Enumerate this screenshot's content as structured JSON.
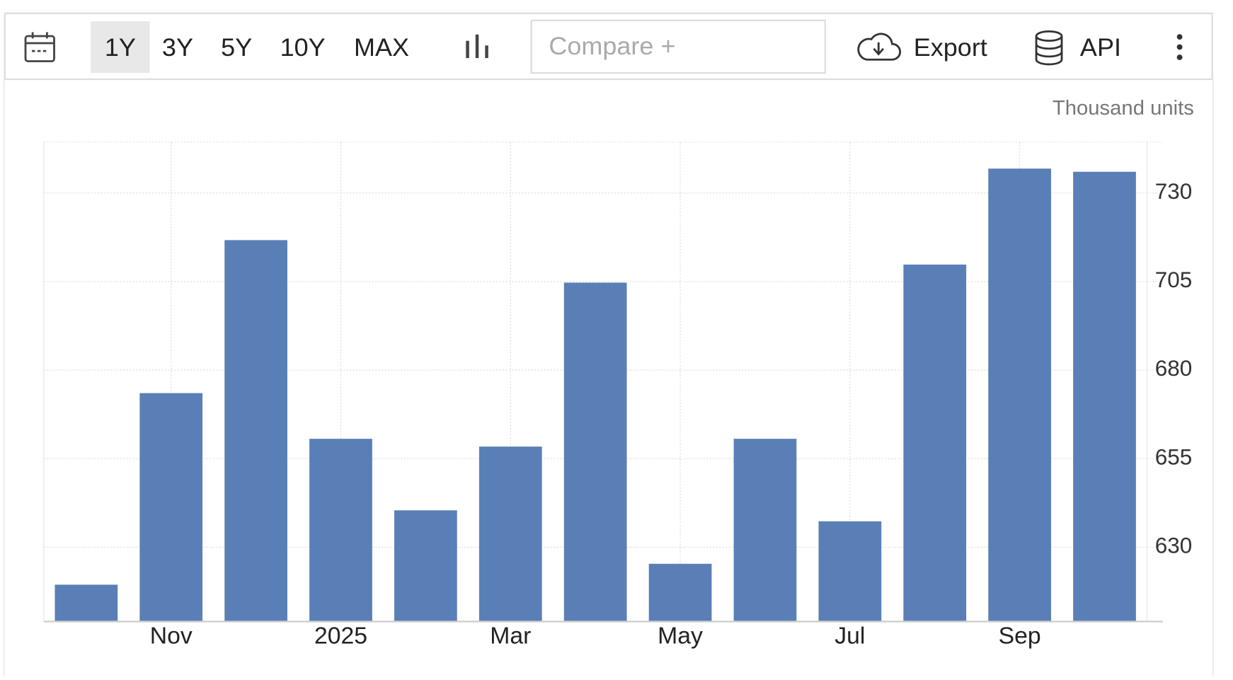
{
  "toolbar": {
    "ranges": [
      "1Y",
      "3Y",
      "5Y",
      "10Y",
      "MAX"
    ],
    "compare": "Compare +",
    "export": "Export",
    "api": "API"
  },
  "chart_data": {
    "type": "bar",
    "unit_label": "Thousand units",
    "categories": [
      null,
      "Nov",
      null,
      "2025",
      null,
      "Mar",
      null,
      "May",
      null,
      "Jul",
      null,
      "Sep",
      null
    ],
    "values": [
      619.4,
      673.5,
      716.7,
      660.6,
      640.4,
      658.4,
      704.7,
      625.3,
      660.6,
      637.3,
      709.8,
      736.9,
      736.0
    ],
    "color": "#5a7fb6",
    "ylim": [
      609,
      744.4
    ],
    "yticks": [
      630,
      655,
      680,
      705,
      730
    ],
    "grid": true
  }
}
